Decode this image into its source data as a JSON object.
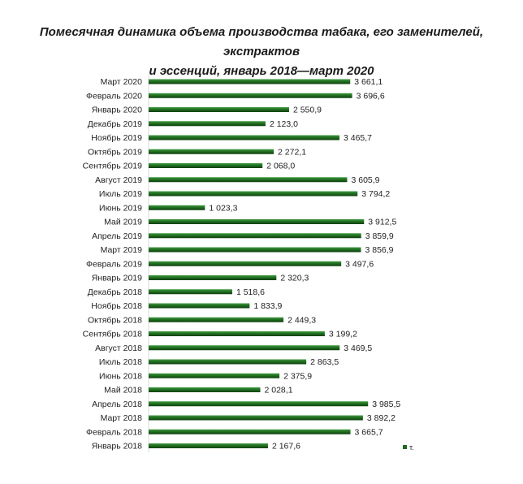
{
  "title_line1": "Помесячная динамика объема производства табака, его заменителей, экстрактов",
  "title_line2": "и эссенций, январь 2018—март 2020",
  "colors": {
    "bar": "#1f6b1f",
    "bar_dark": "#0f3f0f",
    "bar_light": "#3f9a3f"
  },
  "chart_data": {
    "type": "bar",
    "orientation": "horizontal",
    "title": "Помесячная динамика объема производства табака, его заменителей, экстрактов и эссенций, январь 2018—март 2020",
    "categories": [
      "Март 2020",
      "Февраль 2020",
      "Январь 2020",
      "Декабрь 2019",
      "Ноябрь 2019",
      "Октябрь 2019",
      "Сентябрь 2019",
      "Август 2019",
      "Июль 2019",
      "Июнь 2019",
      "Май 2019",
      "Апрель 2019",
      "Март 2019",
      "Февраль 2019",
      "Январь 2019",
      "Декабрь 2018",
      "Ноябрь 2018",
      "Октябрь 2018",
      "Сентябрь 2018",
      "Август 2018",
      "Июль 2018",
      "Июнь 2018",
      "Май 2018",
      "Апрель 2018",
      "Март 2018",
      "Февраль 2018",
      "Январь 2018"
    ],
    "values": [
      3661.1,
      3696.6,
      2550.9,
      2123.0,
      3465.7,
      2272.1,
      2068.0,
      3605.9,
      3794.2,
      1023.3,
      3912.5,
      3859.9,
      3856.9,
      3497.6,
      2320.3,
      1518.6,
      1833.9,
      2449.3,
      3199.2,
      3469.5,
      2863.5,
      2375.9,
      2028.1,
      3985.5,
      3892.2,
      3665.7,
      2167.6
    ],
    "value_labels": [
      "3 661,1",
      "3 696,6",
      "2 550,9",
      "2 123,0",
      "3 465,7",
      "2 272,1",
      "2 068,0",
      "3 605,9",
      "3 794,2",
      "1 023,3",
      "3 912,5",
      "3 859,9",
      "3 856,9",
      "3 497,6",
      "2 320,3",
      "1 518,6",
      "1 833,9",
      "2 449,3",
      "3 199,2",
      "3 469,5",
      "2 863,5",
      "2 375,9",
      "2 028,1",
      "3 985,5",
      "3 892,2",
      "3 665,7",
      "2 167,6"
    ],
    "series": [
      {
        "name": "т."
      }
    ],
    "legend_position": "bottom-right",
    "grid": false,
    "xlim": [
      0,
      4500
    ]
  }
}
